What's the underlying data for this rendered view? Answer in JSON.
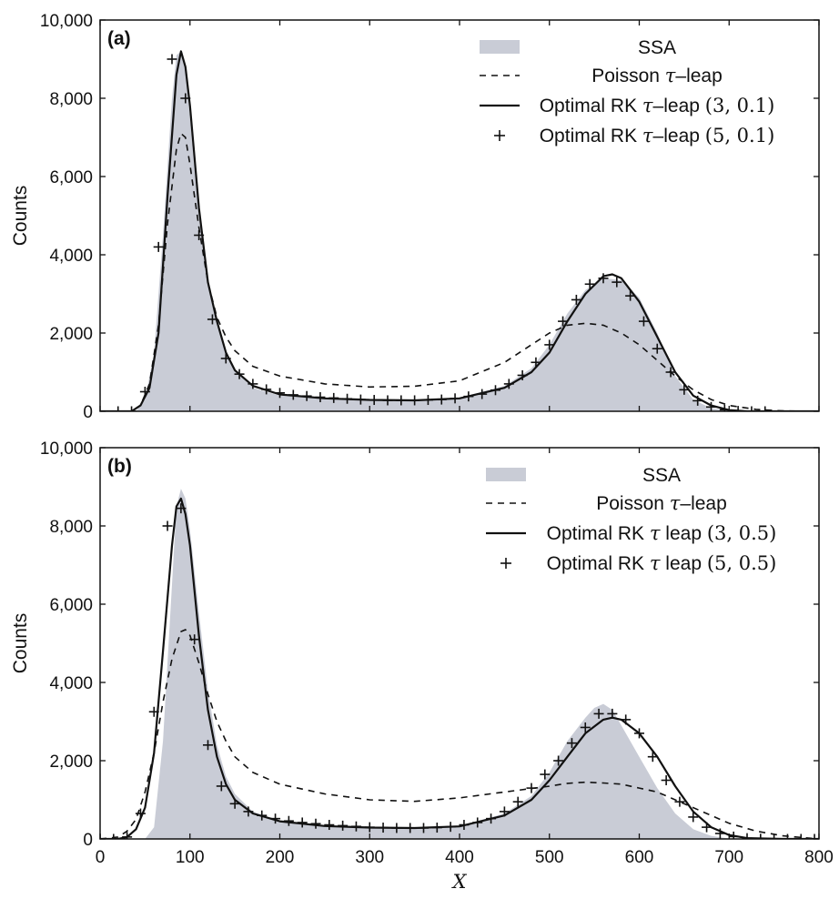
{
  "chart_data": [
    {
      "type": "area",
      "panel_label": "(a)",
      "xlabel": "",
      "ylabel": "Counts",
      "xlim": [
        0,
        800
      ],
      "ylim": [
        0,
        10000
      ],
      "xticks": [],
      "yticks": [
        0,
        2000,
        4000,
        6000,
        8000,
        10000
      ],
      "ytick_labels": [
        "0",
        "2,000",
        "4,000",
        "6,000",
        "8,000",
        "10,000"
      ],
      "legend_position": "top-right",
      "series": [
        {
          "name": "SSA",
          "style": "filled-area",
          "color": "#c9ccd6",
          "x": [
            0,
            40,
            50,
            60,
            70,
            80,
            85,
            90,
            95,
            100,
            110,
            120,
            130,
            140,
            150,
            170,
            200,
            250,
            300,
            350,
            400,
            450,
            480,
            500,
            520,
            540,
            560,
            580,
            600,
            620,
            640,
            660,
            680,
            700,
            720,
            800
          ],
          "y": [
            0,
            0,
            300,
            1500,
            4500,
            8000,
            9100,
            9200,
            8700,
            7500,
            5000,
            3300,
            2200,
            1500,
            1050,
            600,
            400,
            320,
            290,
            280,
            350,
            650,
            1100,
            1700,
            2500,
            3100,
            3400,
            3350,
            2900,
            2000,
            900,
            300,
            80,
            20,
            0,
            0
          ]
        },
        {
          "name": "Poisson τ–leap",
          "style": "dashed-line",
          "color": "#111111",
          "x": [
            0,
            35,
            45,
            55,
            65,
            75,
            85,
            90,
            95,
            100,
            110,
            120,
            130,
            140,
            150,
            170,
            200,
            250,
            300,
            350,
            400,
            450,
            480,
            500,
            520,
            540,
            560,
            580,
            600,
            620,
            640,
            660,
            680,
            700,
            730,
            760,
            800
          ],
          "y": [
            0,
            0,
            150,
            700,
            2200,
            4800,
            6700,
            7100,
            7000,
            6300,
            4700,
            3300,
            2400,
            1900,
            1550,
            1150,
            900,
            700,
            620,
            640,
            780,
            1250,
            1700,
            2000,
            2200,
            2250,
            2200,
            2000,
            1700,
            1300,
            900,
            550,
            300,
            150,
            50,
            10,
            0
          ]
        },
        {
          "name": "Optimal RK τ–leap (3, 0.1)",
          "style": "solid-line",
          "color": "#111111",
          "x": [
            0,
            35,
            45,
            55,
            65,
            75,
            85,
            90,
            95,
            100,
            110,
            120,
            130,
            140,
            150,
            170,
            200,
            250,
            300,
            350,
            400,
            450,
            480,
            500,
            520,
            540,
            560,
            570,
            580,
            600,
            620,
            640,
            660,
            680,
            700,
            720,
            800
          ],
          "y": [
            0,
            0,
            150,
            600,
            2000,
            5500,
            8600,
            9200,
            8800,
            7800,
            5200,
            3300,
            2300,
            1500,
            1050,
            650,
            430,
            330,
            290,
            280,
            330,
            600,
            1000,
            1500,
            2300,
            3000,
            3450,
            3500,
            3400,
            2800,
            1900,
            1000,
            400,
            150,
            30,
            0,
            0
          ]
        },
        {
          "name": "Optimal RK τ–leap (5, 0.1)",
          "style": "plus-markers",
          "color": "#111111",
          "x": [
            20,
            35,
            50,
            65,
            80,
            95,
            110,
            125,
            140,
            155,
            170,
            185,
            200,
            215,
            230,
            245,
            260,
            275,
            290,
            305,
            320,
            335,
            350,
            365,
            380,
            395,
            410,
            425,
            440,
            455,
            470,
            485,
            500,
            515,
            530,
            545,
            560,
            575,
            590,
            605,
            620,
            635,
            650,
            665,
            680,
            695,
            710,
            725,
            740
          ],
          "y": [
            0,
            0,
            500,
            4200,
            9000,
            8000,
            4500,
            2350,
            1350,
            950,
            700,
            560,
            470,
            420,
            390,
            360,
            340,
            320,
            300,
            290,
            280,
            280,
            280,
            290,
            300,
            330,
            380,
            440,
            540,
            700,
            920,
            1250,
            1700,
            2300,
            2850,
            3250,
            3400,
            3300,
            2950,
            2300,
            1600,
            1000,
            550,
            270,
            110,
            40,
            10,
            0,
            0
          ]
        }
      ]
    },
    {
      "type": "area",
      "panel_label": "(b)",
      "xlabel": "X",
      "ylabel": "Counts",
      "xlim": [
        0,
        800
      ],
      "ylim": [
        0,
        10000
      ],
      "xticks": [
        0,
        100,
        200,
        300,
        400,
        500,
        600,
        700,
        800
      ],
      "yticks": [
        0,
        2000,
        4000,
        6000,
        8000,
        10000
      ],
      "ytick_labels": [
        "0",
        "2,000",
        "4,000",
        "6,000",
        "8,000",
        "10,000"
      ],
      "legend_position": "top-right",
      "series": [
        {
          "name": "SSA",
          "style": "filled-area",
          "color": "#c9ccd6",
          "x": [
            0,
            50,
            60,
            70,
            80,
            85,
            90,
            95,
            100,
            110,
            120,
            130,
            140,
            150,
            170,
            200,
            250,
            300,
            350,
            400,
            450,
            480,
            500,
            520,
            540,
            550,
            560,
            570,
            580,
            600,
            620,
            640,
            660,
            680,
            700,
            800
          ],
          "y": [
            0,
            0,
            300,
            2500,
            6500,
            8500,
            8950,
            8700,
            7900,
            5800,
            3800,
            2400,
            1600,
            1150,
            700,
            450,
            330,
            290,
            280,
            330,
            650,
            1100,
            1700,
            2500,
            3100,
            3350,
            3450,
            3300,
            2900,
            2100,
            1300,
            650,
            250,
            80,
            10,
            0
          ]
        },
        {
          "name": "Poisson τ–leap",
          "style": "dashed-line",
          "color": "#111111",
          "x": [
            0,
            20,
            30,
            40,
            50,
            60,
            70,
            80,
            90,
            95,
            100,
            110,
            120,
            130,
            140,
            150,
            170,
            200,
            250,
            300,
            350,
            400,
            450,
            500,
            520,
            540,
            560,
            580,
            600,
            620,
            640,
            660,
            680,
            700,
            730,
            760,
            800
          ],
          "y": [
            0,
            50,
            200,
            500,
            1200,
            2200,
            3500,
            4600,
            5300,
            5350,
            5200,
            4500,
            3700,
            3000,
            2500,
            2100,
            1700,
            1400,
            1150,
            1000,
            960,
            1050,
            1200,
            1350,
            1420,
            1450,
            1430,
            1400,
            1300,
            1200,
            1000,
            800,
            600,
            400,
            200,
            80,
            0
          ]
        },
        {
          "name": "Optimal RK τ leap (3, 0.5)",
          "style": "solid-line",
          "color": "#111111",
          "x": [
            0,
            20,
            30,
            40,
            50,
            60,
            70,
            80,
            85,
            90,
            95,
            100,
            110,
            120,
            130,
            140,
            150,
            170,
            200,
            250,
            300,
            350,
            400,
            450,
            480,
            500,
            520,
            540,
            560,
            570,
            580,
            600,
            620,
            640,
            660,
            680,
            700,
            720,
            760,
            800
          ],
          "y": [
            0,
            0,
            50,
            250,
            800,
            2200,
            4800,
            7500,
            8500,
            8700,
            8300,
            7500,
            5200,
            3300,
            2100,
            1400,
            1000,
            650,
            450,
            330,
            290,
            280,
            320,
            600,
            1000,
            1500,
            2100,
            2700,
            3050,
            3100,
            3050,
            2700,
            2100,
            1350,
            700,
            300,
            100,
            20,
            0,
            0
          ]
        },
        {
          "name": "Optimal RK τ leap (5, 0.5)",
          "style": "plus-markers",
          "color": "#111111",
          "x": [
            0,
            15,
            30,
            45,
            60,
            75,
            90,
            105,
            120,
            135,
            150,
            165,
            180,
            195,
            210,
            225,
            240,
            255,
            270,
            285,
            300,
            315,
            330,
            345,
            360,
            375,
            390,
            405,
            420,
            435,
            450,
            465,
            480,
            495,
            510,
            525,
            540,
            555,
            570,
            585,
            600,
            615,
            630,
            645,
            660,
            675,
            690,
            705,
            720,
            735,
            750,
            765,
            780,
            795
          ],
          "y": [
            0,
            0,
            50,
            650,
            3250,
            8000,
            8450,
            5100,
            2400,
            1350,
            900,
            700,
            600,
            520,
            460,
            420,
            390,
            360,
            340,
            320,
            300,
            290,
            280,
            280,
            280,
            290,
            310,
            360,
            420,
            520,
            700,
            950,
            1300,
            1650,
            2000,
            2450,
            2850,
            3200,
            3200,
            3050,
            2700,
            2100,
            1500,
            950,
            560,
            300,
            140,
            60,
            20,
            5,
            0,
            0,
            0,
            0
          ]
        }
      ]
    }
  ]
}
